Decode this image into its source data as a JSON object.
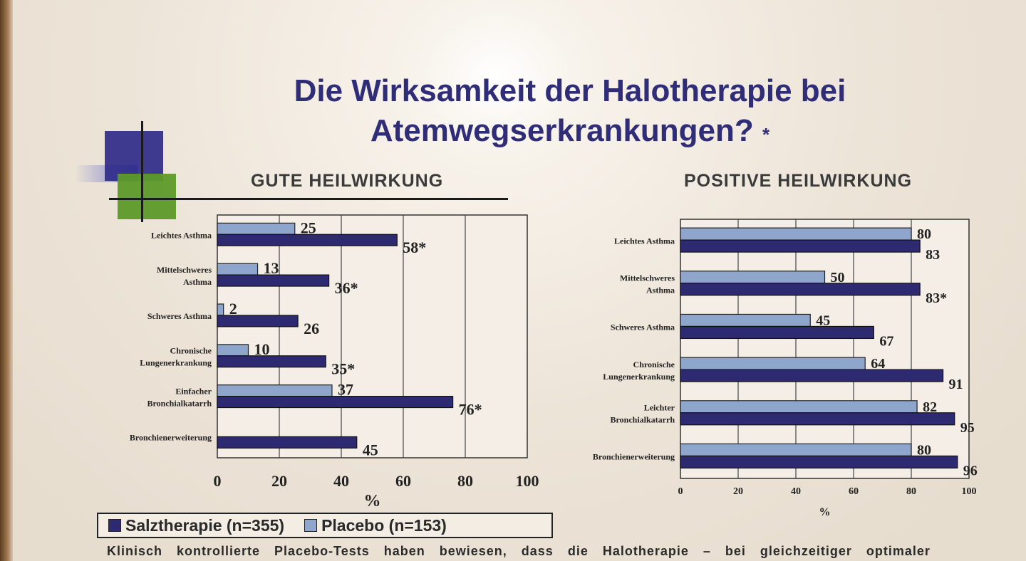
{
  "title": {
    "line1": "Die Wirksamkeit der Halotherapie bei",
    "line2": "Atemwegserkrankungen?",
    "marker": "*"
  },
  "legend": {
    "items": [
      {
        "label": "Salztherapie (n=355)",
        "color": "#2d2a72"
      },
      {
        "label": "Placebo (n=153)",
        "color": "#8ea5cc"
      }
    ]
  },
  "footnote": "Klinisch kontrollierte Placebo-Tests haben bewiesen, dass die Halotherapie – bei gleichzeitiger optimaler",
  "colors": {
    "salt": "#2d2a72",
    "placebo": "#8ea5cc",
    "plot_bg": "#f4eee6"
  },
  "chart_data": [
    {
      "type": "bar",
      "orientation": "horizontal",
      "title": "GUTE HEILWIRKUNG",
      "xlabel": "%",
      "xlim": [
        0,
        100
      ],
      "xticks": [
        "0",
        "20",
        "40",
        "60",
        "80",
        "100"
      ],
      "categories": [
        "Leichtes Asthma",
        "Mittelschweres Asthma",
        "Schweres Asthma",
        "Chronische Lungenerkrankung",
        "Einfacher Bronchialkatarrh",
        "Bronchienerweiterung"
      ],
      "series": [
        {
          "name": "Placebo (n=153)",
          "values": [
            25,
            13,
            2,
            10,
            37,
            0
          ],
          "labels": [
            "25",
            "13",
            "2",
            "10",
            "37",
            ""
          ]
        },
        {
          "name": "Salztherapie (n=355)",
          "values": [
            58,
            36,
            26,
            35,
            76,
            45
          ],
          "labels": [
            "58*",
            "36*",
            "26",
            "35*",
            "76*",
            "45"
          ]
        }
      ],
      "grid": true
    },
    {
      "type": "bar",
      "orientation": "horizontal",
      "title": "POSITIVE HEILWIRKUNG",
      "xlabel": "%",
      "xlim": [
        0,
        100
      ],
      "xticks": [
        "0",
        "20",
        "40",
        "60",
        "80",
        "100"
      ],
      "categories": [
        "Leichtes Asthma",
        "Mittelschweres Asthma",
        "Schweres Asthma",
        "Chronische Lungenerkrankung",
        "Leichter Bronchialkatarrh",
        "Bronchienerweiterung"
      ],
      "series": [
        {
          "name": "Placebo (n=153)",
          "values": [
            80,
            50,
            45,
            64,
            82,
            80
          ],
          "labels": [
            "80",
            "50",
            "45",
            "64",
            "82",
            "80"
          ]
        },
        {
          "name": "Salztherapie (n=355)",
          "values": [
            83,
            83,
            67,
            91,
            95,
            96
          ],
          "labels": [
            "83",
            "83*",
            "67",
            "91",
            "95",
            "96"
          ]
        }
      ],
      "grid": true
    }
  ]
}
